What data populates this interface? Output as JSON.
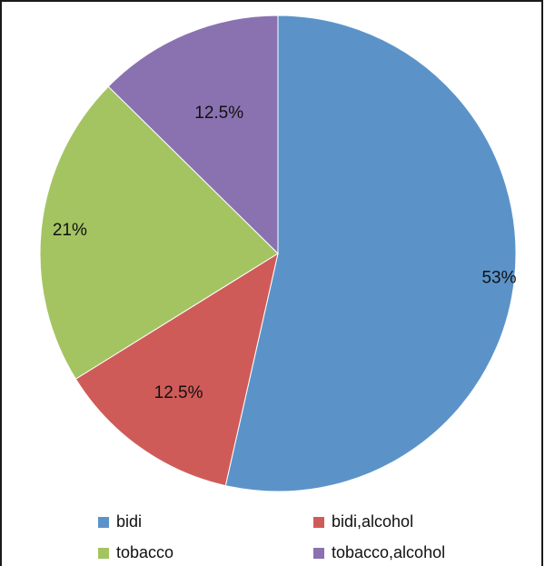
{
  "chart_data": {
    "type": "pie",
    "title": "",
    "categories": [
      "bidi",
      "bidi,alcohol",
      "tobacco",
      "tobacco,alcohol"
    ],
    "values": [
      53,
      12.5,
      21,
      12.5
    ],
    "labels": [
      "53%",
      "12.5%",
      "21%",
      "12.5%"
    ],
    "colors": [
      "#5b93c9",
      "#cf5b58",
      "#a4c462",
      "#8a72b0"
    ],
    "start_angle_deg": 0,
    "direction": "clockwise",
    "legend_position": "bottom"
  }
}
